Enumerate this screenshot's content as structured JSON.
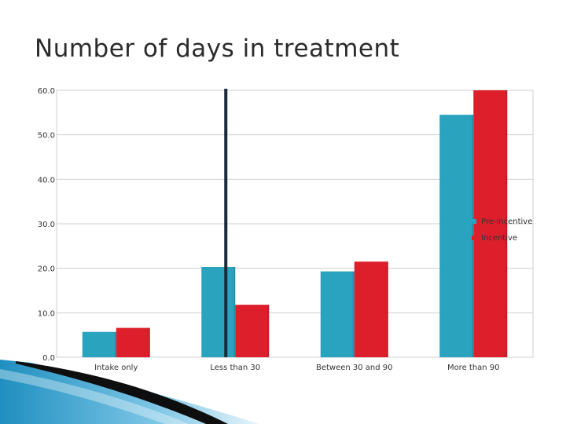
{
  "slide": {
    "title": "Number of days in treatment"
  },
  "chart_data": {
    "type": "bar",
    "title": "Number of days in treatment",
    "xlabel": "",
    "ylabel": "",
    "categories": [
      "Intake only",
      "Less than 30",
      "Between 30 and 90",
      "More than 90"
    ],
    "series": [
      {
        "name": "Pre-incentive",
        "color": "#2aa3bf",
        "values": [
          5.7,
          20.3,
          19.3,
          54.5
        ]
      },
      {
        "name": "Incentive",
        "color": "#dd1f2c",
        "values": [
          6.6,
          11.8,
          21.5,
          60.0
        ]
      }
    ],
    "ylim": [
      0,
      60
    ],
    "yticks": [
      0,
      10,
      20,
      30,
      40,
      50,
      60
    ],
    "ytick_labels": [
      "0.0",
      "10.0",
      "20.0",
      "30.0",
      "40.0",
      "50.0",
      "60.0"
    ],
    "grid": true,
    "legend": "right",
    "marker_line": {
      "after_category": "Less than 30",
      "color": "#1b2a3a"
    }
  }
}
